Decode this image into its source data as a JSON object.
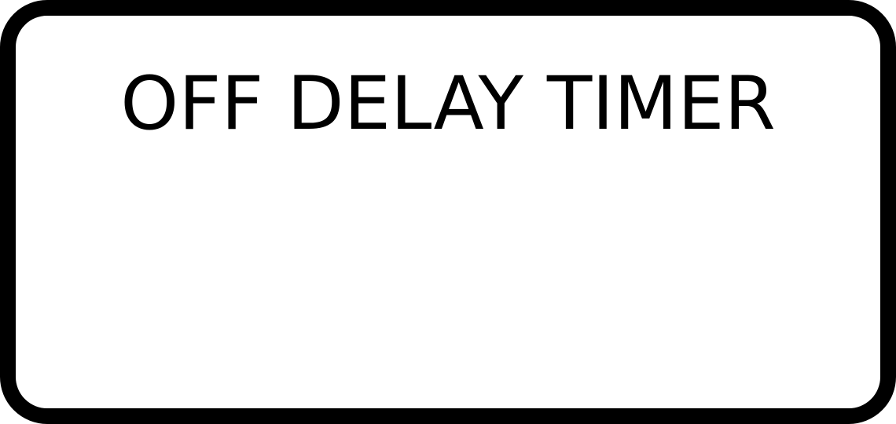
{
  "label": {
    "title": "OFF DELAY TIMER",
    "border_color": "#000000",
    "background_color": "#ffffff",
    "text_color": "#000000"
  }
}
